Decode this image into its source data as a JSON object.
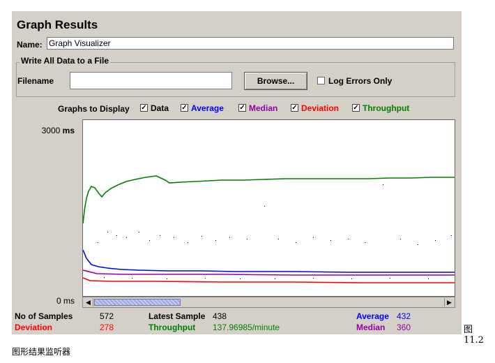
{
  "window": {
    "title": "Graph Results"
  },
  "name_field": {
    "label": "Name:",
    "value": "Graph Visualizer"
  },
  "file_group": {
    "title": "Write All Data to a File",
    "filename_label": "Filename",
    "filename_value": "",
    "browse_label": "Browse...",
    "log_errors_label": "Log Errors Only",
    "log_errors_checked": false
  },
  "graphs_to_display": {
    "label": "Graphs to Display",
    "options": [
      {
        "label": "Data",
        "checked": true,
        "color": "#000000"
      },
      {
        "label": "Average",
        "checked": true,
        "color": "#0000ff"
      },
      {
        "label": "Median",
        "checked": true,
        "color": "#9400a8"
      },
      {
        "label": "Deviation",
        "checked": true,
        "color": "#ff0000"
      },
      {
        "label": "Throughput",
        "checked": true,
        "color": "#008000"
      }
    ]
  },
  "axis": {
    "top_value": "3000",
    "top_unit": "ms",
    "bottom_label": "0 ms"
  },
  "chart_data": {
    "type": "line",
    "ylim": [
      0,
      3000
    ],
    "series": [
      {
        "name": "Throughput",
        "color": "#008000"
      },
      {
        "name": "Average",
        "color": "#0000ff"
      },
      {
        "name": "Median",
        "color": "#9400a8"
      },
      {
        "name": "Deviation",
        "color": "#ff0000"
      },
      {
        "name": "Data",
        "color": "#000000"
      }
    ]
  },
  "stats": {
    "samples_label": "No of Samples",
    "samples_value": "572",
    "latest_label": "Latest Sample",
    "latest_value": "438",
    "average_label": "Average",
    "average_value": "432",
    "deviation_label": "Deviation",
    "deviation_value": "278",
    "throughput_label": "Throughput",
    "throughput_value": "137.96985/minute",
    "median_label": "Median",
    "median_value": "360"
  },
  "captions": {
    "figure_number": "图 11.2",
    "figure_title": "图形结果监听器"
  }
}
